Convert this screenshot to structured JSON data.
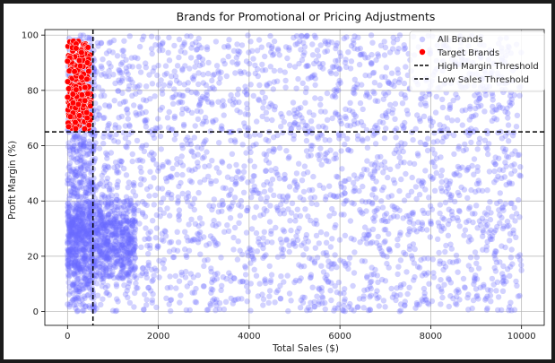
{
  "chart_data": {
    "type": "scatter",
    "title": "Brands for Promotional or Pricing Adjustments",
    "xlabel": "Total Sales ($)",
    "ylabel": "Profit Margin (%)",
    "xlim": [
      -500,
      10500
    ],
    "ylim": [
      -5,
      102
    ],
    "x_ticks": [
      0,
      2000,
      4000,
      6000,
      8000,
      10000
    ],
    "y_ticks": [
      0,
      20,
      40,
      60,
      80,
      100
    ],
    "grid": true,
    "legend_position": "top-right",
    "thresholds": {
      "high_margin": 65,
      "low_sales": 560
    },
    "series": [
      {
        "name": "All Brands",
        "color": "#6b6bff",
        "alpha": 0.3,
        "description_points": "approx. 4000 points; dense cluster at x 0-1500, y 15-40; remaining spread uniformly over x 0-10000, y 0-100",
        "clusters": [
          {
            "x_range": [
              0,
              10000
            ],
            "y_range": [
              0,
              100
            ],
            "count": 2600
          },
          {
            "x_range": [
              0,
              1500
            ],
            "y_range": [
              15,
              40
            ],
            "count": 900
          },
          {
            "x_range": [
              0,
              600
            ],
            "y_range": [
              0,
              100
            ],
            "count": 500
          }
        ]
      },
      {
        "name": "Target Brands",
        "color": "#ff0000",
        "alpha": 1.0,
        "clusters": [
          {
            "x_range": [
              0,
              520
            ],
            "y_range": [
              66,
              98
            ],
            "count": 240
          }
        ]
      }
    ],
    "reference_lines": [
      {
        "name": "High Margin Threshold",
        "orientation": "horizontal",
        "value": 65,
        "style": "dashed",
        "color": "#000000"
      },
      {
        "name": "Low Sales Threshold",
        "orientation": "vertical",
        "value": 560,
        "style": "dashed",
        "color": "#000000"
      }
    ]
  }
}
